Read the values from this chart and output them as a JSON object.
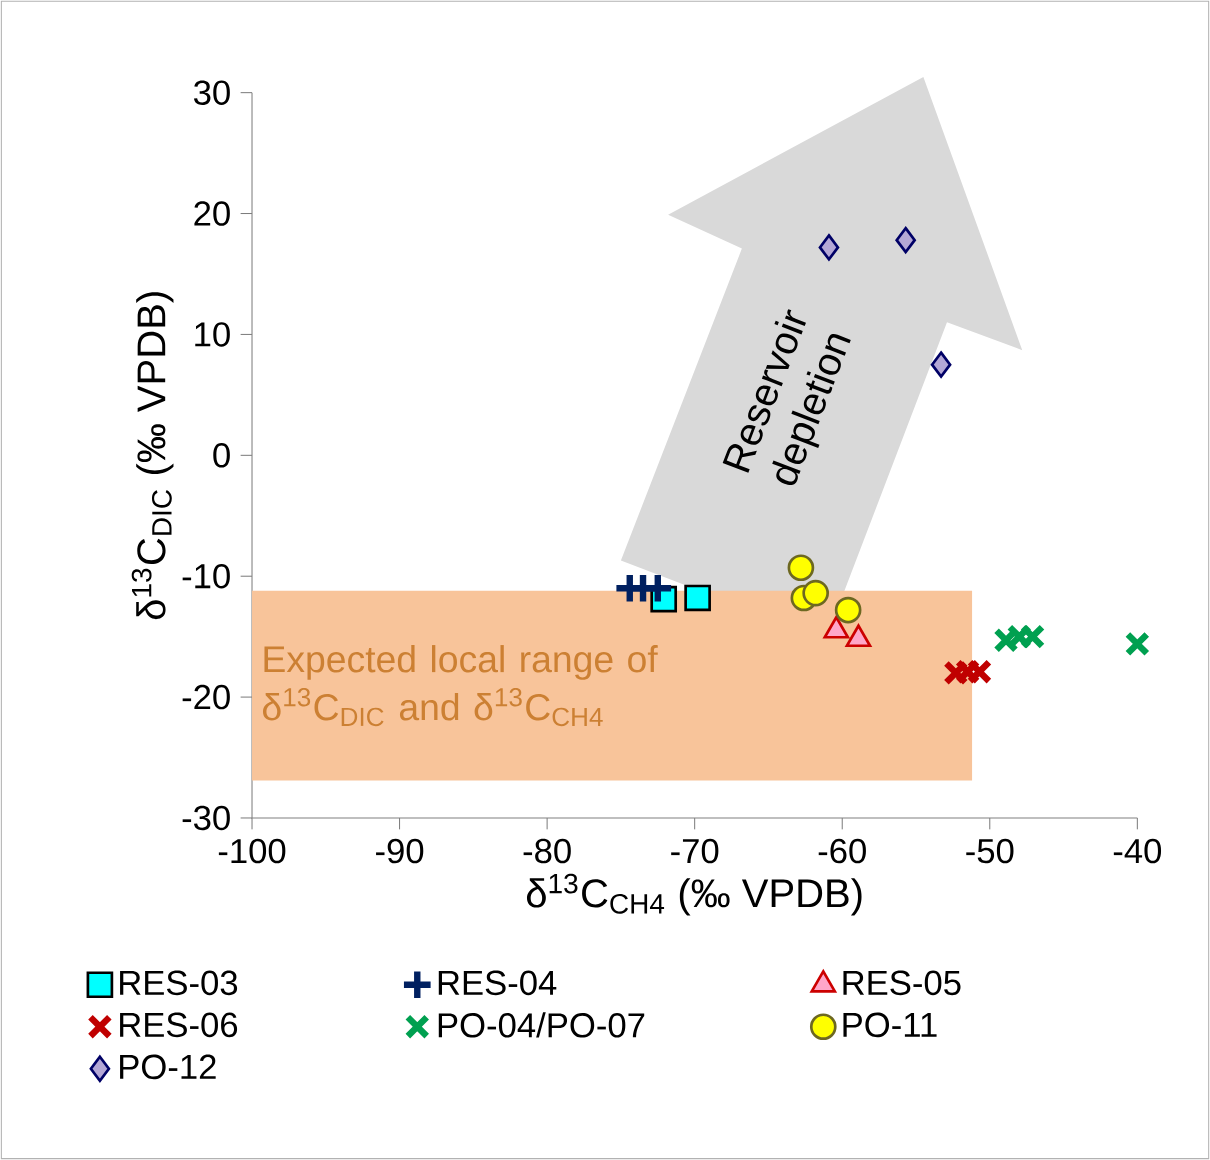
{
  "chart_data": {
    "type": "scatter",
    "xlabel": "δ$^{13}$C$_{CH4}$ (‰ VPDB)",
    "ylabel": "δ$^{13}$C$_{DIC}$ (‰ VPDB)",
    "xlim": [
      -100,
      -40
    ],
    "xticks": [
      -100,
      -90,
      -80,
      -70,
      -60,
      -50,
      -40
    ],
    "ylim": [
      -30,
      30
    ],
    "yticks": [
      -30,
      -20,
      -10,
      0,
      10,
      20,
      30
    ],
    "grid": false,
    "legend": "bottom",
    "series": [
      {
        "name": "RES-03",
        "color": "#00ffff",
        "marker": "square",
        "x": [
          -72.1,
          -69.8
        ],
        "values": [
          -11.9,
          -11.8
        ]
      },
      {
        "name": "RES-04",
        "color": "#002060",
        "marker": "plus",
        "x": [
          -74.4,
          -73.5,
          -72.5
        ],
        "values": [
          -11.0,
          -11.0,
          -11.0
        ]
      },
      {
        "name": "RES-05",
        "color": "#ffa6c9",
        "marker": "triangle",
        "x": [
          -60.4,
          -58.9
        ],
        "values": [
          -14.5,
          -15.2
        ]
      },
      {
        "name": "RES-06",
        "color": "#c00000",
        "marker": "cross",
        "x": [
          -52.3,
          -51.5,
          -50.7
        ],
        "values": [
          -18.0,
          -17.9,
          -17.9
        ]
      },
      {
        "name": "PO-04/PO-07",
        "color": "#00a050",
        "marker": "cross",
        "x": [
          -48.9,
          -48.0,
          -47.1,
          -40.0
        ],
        "values": [
          -15.3,
          -15.0,
          -15.0,
          -15.6
        ]
      },
      {
        "name": "PO-11",
        "color": "#ffff00",
        "marker": "circle",
        "x": [
          -62.8,
          -62.6,
          -61.8,
          -59.6
        ],
        "values": [
          -9.3,
          -11.8,
          -11.4,
          -12.8
        ]
      },
      {
        "name": "PO-12",
        "color": "#b4a7d6",
        "marker": "diamond",
        "x": [
          -60.9,
          -55.7,
          -53.3
        ],
        "values": [
          17.2,
          17.8,
          7.5
        ]
      }
    ],
    "bands": [
      {
        "axis": "y",
        "from": -26.9,
        "to": -11.2,
        "color": "#f8c49a",
        "label": "Expected local range of δ$^{13}$C$_{DIC}$ and δ$^{13}$C$_{CH4}$"
      }
    ],
    "annotations": [
      "Reservoir depletion"
    ]
  }
}
